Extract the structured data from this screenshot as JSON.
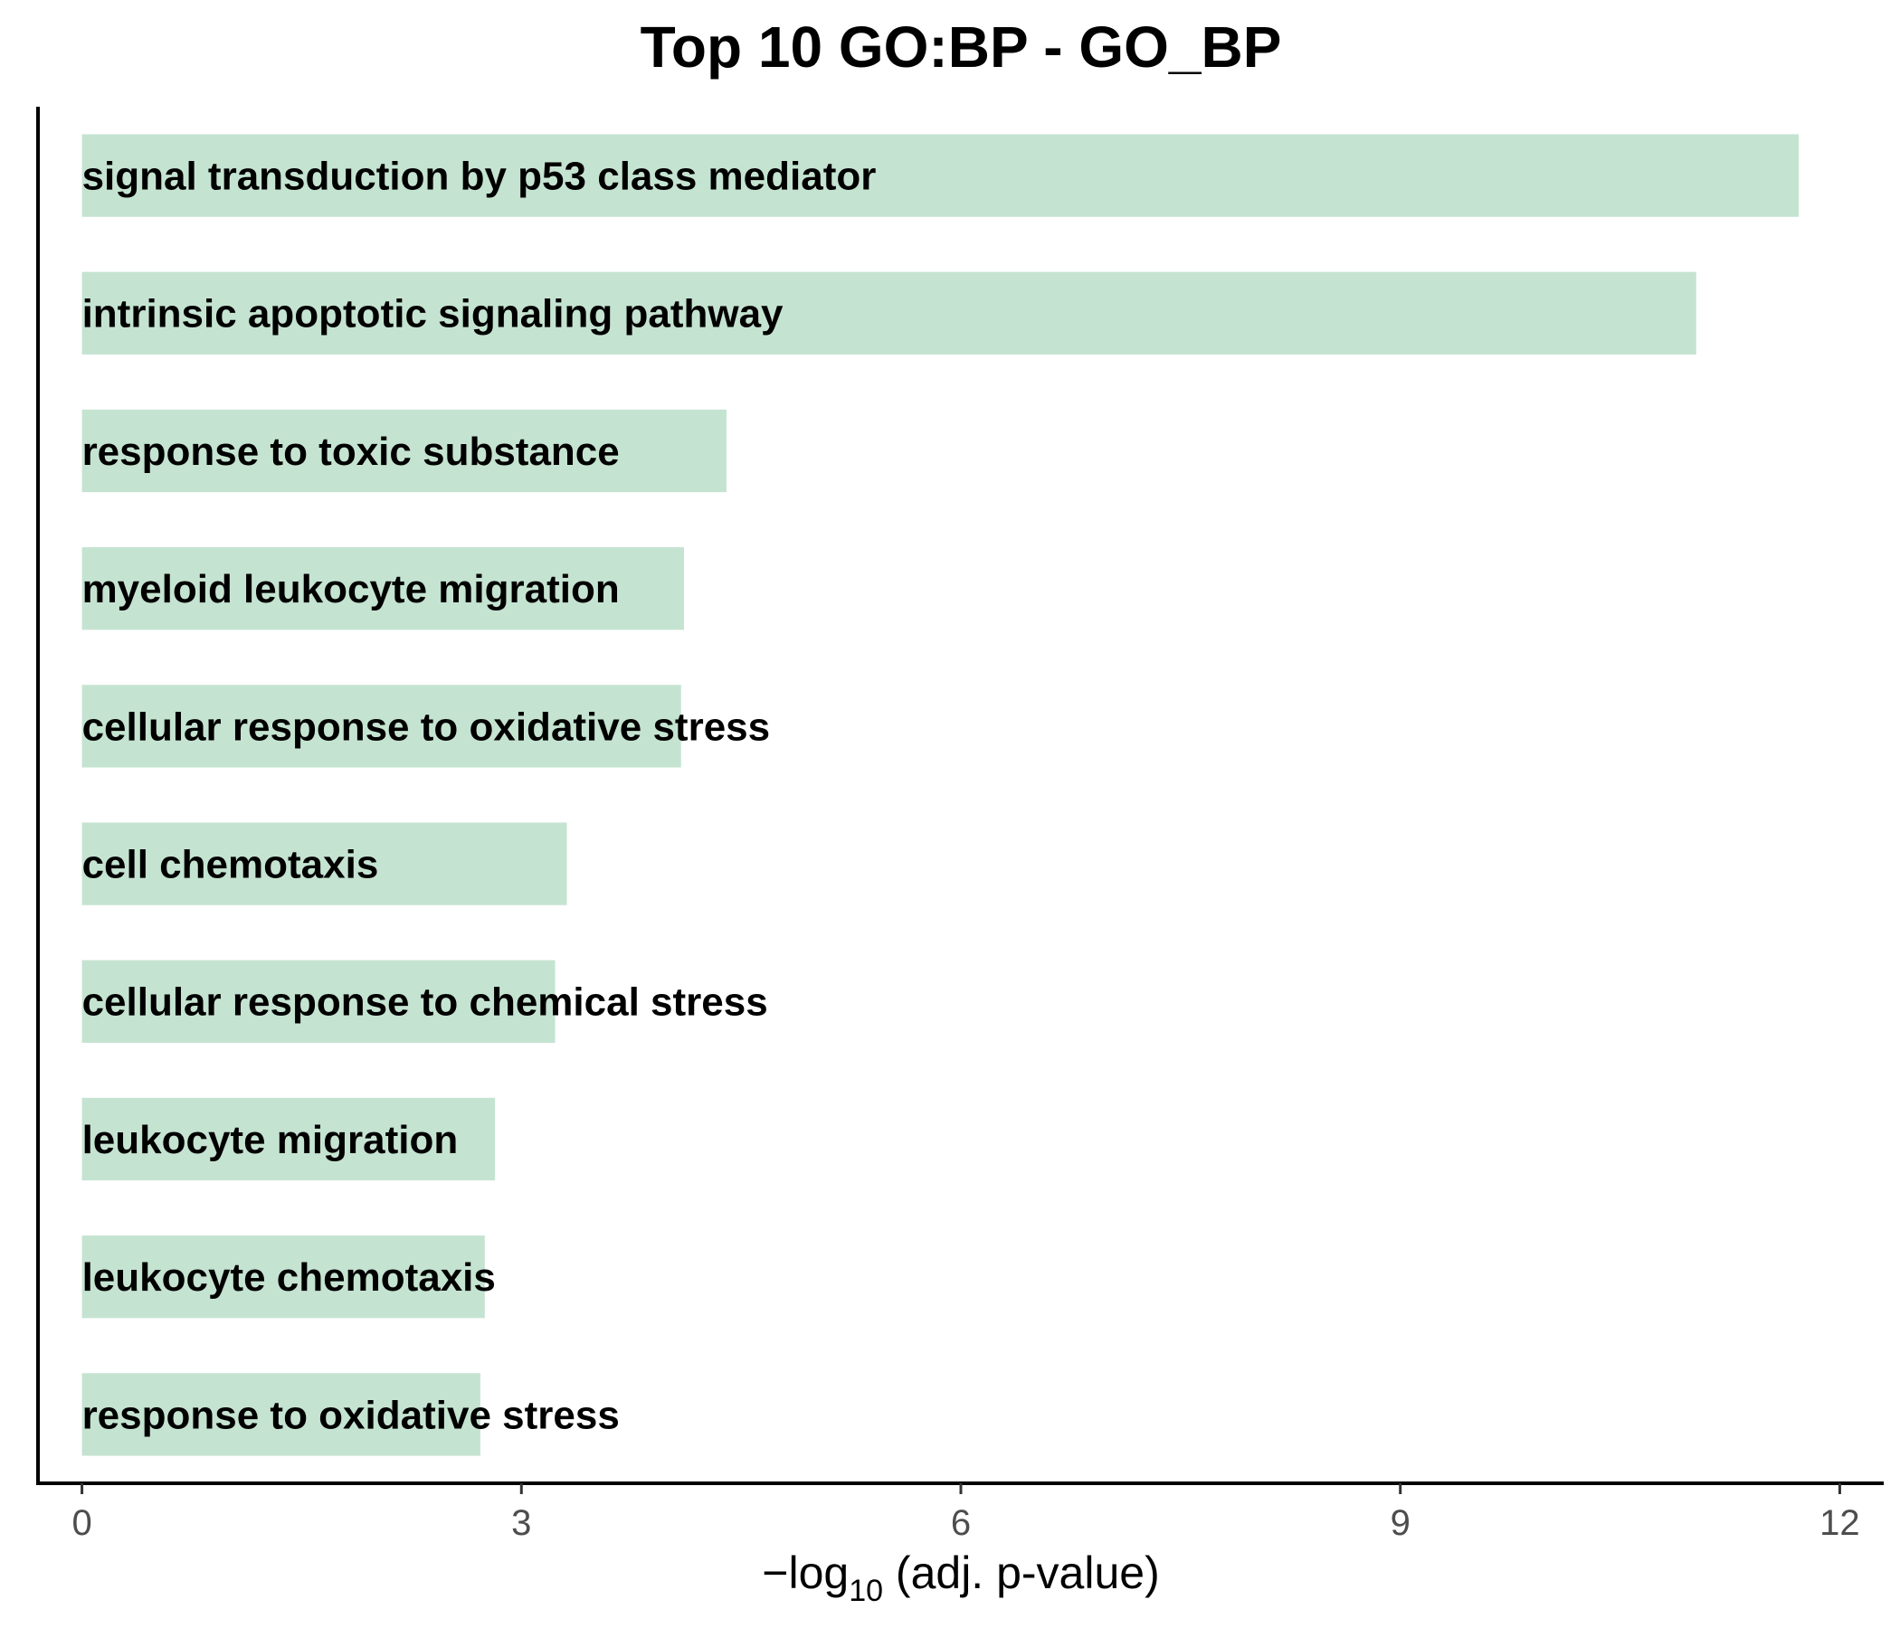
{
  "chart_data": {
    "type": "bar",
    "orientation": "horizontal",
    "title": "Top 10 GO:BP - GO_BP",
    "xlabel": {
      "prefix": "−log",
      "subscript": "10",
      "suffix": " (adj. p-value)"
    },
    "ylabel": "",
    "xlim": [
      -0.3,
      12.3
    ],
    "xticks": [
      0,
      3,
      6,
      9,
      12
    ],
    "categories": [
      "signal transduction by p53 class mediator",
      "intrinsic apoptotic signaling pathway",
      "response to toxic substance",
      "myeloid leukocyte migration",
      "cellular response to oxidative stress",
      "cell chemotaxis",
      "cellular response to chemical stress",
      "leukocyte migration",
      "leukocyte chemotaxis",
      "response to oxidative stress"
    ],
    "values": [
      11.72,
      11.02,
      4.4,
      4.11,
      4.09,
      3.31,
      3.23,
      2.82,
      2.75,
      2.72
    ],
    "bar_color": "#c5e3d1",
    "grid": false,
    "legend": "none"
  }
}
